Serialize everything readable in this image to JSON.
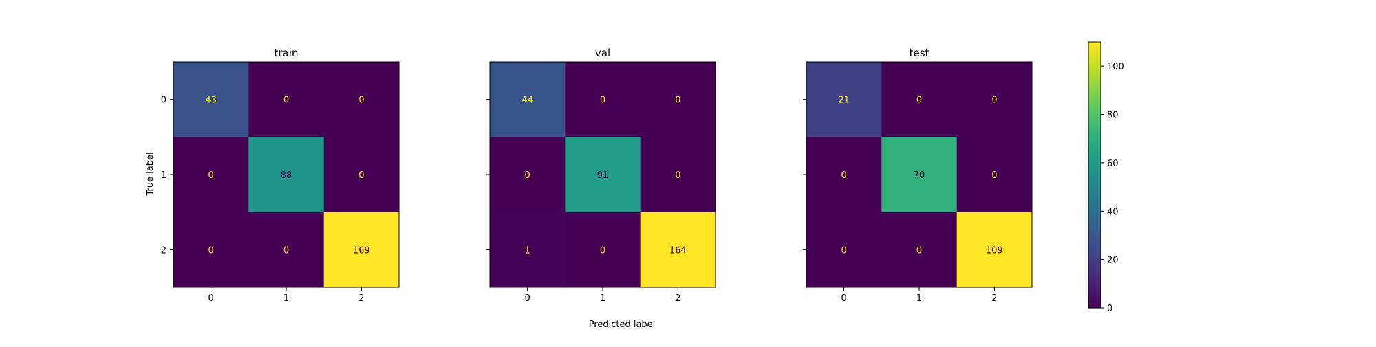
{
  "figure": {
    "xlabel": "Predicted label",
    "ylabel": "True label"
  },
  "chart_data": [
    {
      "type": "heatmap",
      "title": "train",
      "x_tick_labels": [
        "0",
        "1",
        "2"
      ],
      "y_tick_labels": [
        "0",
        "1",
        "2"
      ],
      "matrix": [
        [
          43,
          0,
          0
        ],
        [
          0,
          88,
          0
        ],
        [
          0,
          0,
          169
        ]
      ]
    },
    {
      "type": "heatmap",
      "title": "val",
      "x_tick_labels": [
        "0",
        "1",
        "2"
      ],
      "y_tick_labels": [
        "0",
        "1",
        "2"
      ],
      "matrix": [
        [
          44,
          0,
          0
        ],
        [
          0,
          91,
          0
        ],
        [
          1,
          0,
          164
        ]
      ]
    },
    {
      "type": "heatmap",
      "title": "test",
      "x_tick_labels": [
        "0",
        "1",
        "2"
      ],
      "y_tick_labels": [
        "0",
        "1",
        "2"
      ],
      "matrix": [
        [
          21,
          0,
          0
        ],
        [
          0,
          70,
          0
        ],
        [
          0,
          0,
          109
        ]
      ]
    }
  ],
  "colorbar": {
    "colormap": "viridis",
    "range": [
      0,
      110
    ],
    "ticks": [
      0,
      20,
      40,
      60,
      80,
      100
    ],
    "tick_labels": [
      "0",
      "20",
      "40",
      "60",
      "80",
      "100"
    ]
  }
}
